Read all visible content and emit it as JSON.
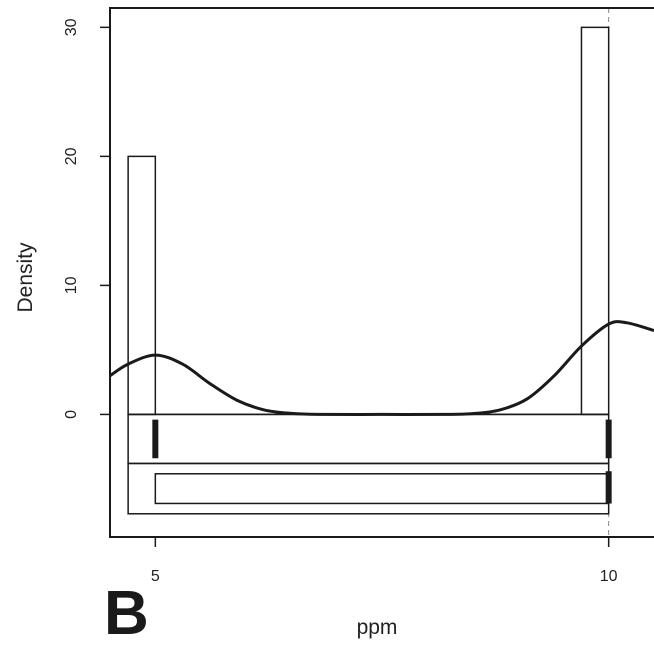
{
  "panel_label": "B",
  "chart_data": {
    "type": "bar",
    "subtype": "histogram-with-density-and-boxplots",
    "xlabel": "ppm",
    "ylabel": "Density",
    "xlim": [
      4.5,
      10.5
    ],
    "ylim": [
      -9.5,
      31.5
    ],
    "x_ticks": [
      {
        "value": 5,
        "label": "5"
      },
      {
        "value": 10,
        "label": "10"
      }
    ],
    "y_ticks": [
      {
        "value": 0,
        "label": "0"
      },
      {
        "value": 10,
        "label": "10"
      },
      {
        "value": 20,
        "label": "20"
      },
      {
        "value": 30,
        "label": "30"
      }
    ],
    "histogram_bars": [
      {
        "x0": 4.7,
        "x1": 5.0,
        "density": 20
      },
      {
        "x0": 9.7,
        "x1": 10.0,
        "density": 30
      }
    ],
    "density_curve": [
      [
        4.5,
        3.0
      ],
      [
        4.7,
        3.9
      ],
      [
        5.0,
        4.6
      ],
      [
        5.3,
        3.9
      ],
      [
        5.6,
        2.4
      ],
      [
        5.9,
        1.1
      ],
      [
        6.2,
        0.35
      ],
      [
        6.5,
        0.08
      ],
      [
        6.8,
        0.0
      ],
      [
        7.5,
        0.0
      ],
      [
        8.2,
        0.0
      ],
      [
        8.5,
        0.06
      ],
      [
        8.8,
        0.35
      ],
      [
        9.1,
        1.2
      ],
      [
        9.4,
        3.0
      ],
      [
        9.7,
        5.3
      ],
      [
        10.0,
        7.0
      ],
      [
        10.2,
        7.1
      ],
      [
        10.5,
        6.5
      ]
    ],
    "boxplots": [
      {
        "y_top": 0,
        "y_bottom": -3.8,
        "x_min": 4.7,
        "x_max": 10.0
      },
      {
        "y_top": -3.8,
        "y_bottom": -7.7,
        "x_min": 4.7,
        "x_max": 10.0
      },
      {
        "y_top": -4.6,
        "y_bottom": -6.9,
        "x_min": 5.0,
        "x_max": 10.0
      }
    ],
    "rug_marks": [
      {
        "x": 5.0,
        "y_top": -0.4,
        "y_bottom": -3.4
      },
      {
        "x": 10.0,
        "y_top": -0.4,
        "y_bottom": -3.4
      },
      {
        "x": 10.0,
        "y_top": -4.4,
        "y_bottom": -6.9
      }
    ],
    "reference_line_x": 10.0
  }
}
